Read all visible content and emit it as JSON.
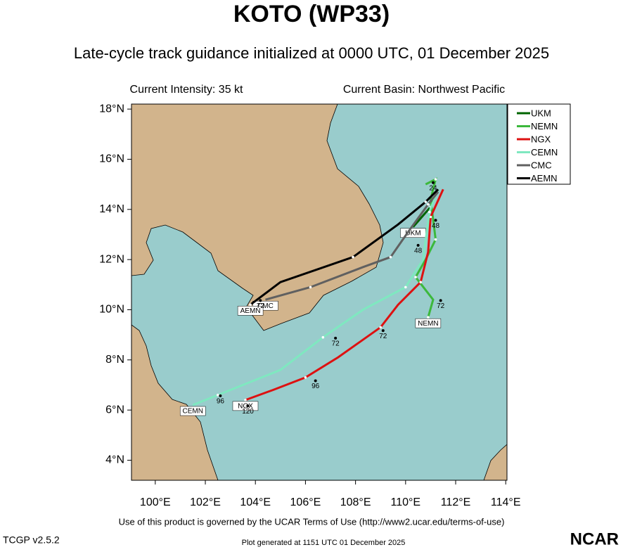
{
  "chart_data": {
    "type": "map",
    "title": "KOTO (WP33)",
    "subtitle": "Late-cycle track guidance initialized at 0000 UTC, 01 December 2025",
    "info_left": "Current Intensity: 35 kt",
    "info_right": "Current Basin: Northwest Pacific",
    "xlim": [
      99.05,
      114.05
    ],
    "ylim": [
      3.2,
      18.2
    ],
    "xticks": [
      {
        "value": 100,
        "label": "100°E"
      },
      {
        "value": 102,
        "label": "102°E"
      },
      {
        "value": 104,
        "label": "104°E"
      },
      {
        "value": 106,
        "label": "106°E"
      },
      {
        "value": 108,
        "label": "108°E"
      },
      {
        "value": 110,
        "label": "110°E"
      },
      {
        "value": 112,
        "label": "112°E"
      },
      {
        "value": 114,
        "label": "114°E"
      }
    ],
    "yticks": [
      {
        "value": 4,
        "label": "4°N"
      },
      {
        "value": 6,
        "label": "6°N"
      },
      {
        "value": 8,
        "label": "8°N"
      },
      {
        "value": 10,
        "label": "10°N"
      },
      {
        "value": 12,
        "label": "12°N"
      },
      {
        "value": 14,
        "label": "14°N"
      },
      {
        "value": 16,
        "label": "16°N"
      },
      {
        "value": 18,
        "label": "18°N"
      }
    ],
    "land_color": "#d2b48c",
    "sea_color": "#99cccc",
    "series": [
      {
        "name": "UKM",
        "color": "#006400",
        "lon": [
          111.3,
          111.0,
          110.3
        ],
        "lat": [
          14.8,
          14.1,
          13.3
        ]
      },
      {
        "name": "NEMN",
        "color": "#3cb83c",
        "lon": [
          110.8,
          111.2,
          111.0,
          111.2,
          110.8,
          110.4,
          111.1,
          110.9
        ],
        "lat": [
          15.0,
          15.2,
          14.4,
          12.8,
          12.0,
          11.3,
          10.4,
          9.7
        ]
      },
      {
        "name": "NGX",
        "color": "#dd1111",
        "lon": [
          111.5,
          111.0,
          110.9,
          110.6,
          109.7,
          109.0,
          107.3,
          106.0,
          104.7,
          103.6
        ],
        "lat": [
          14.8,
          13.7,
          12.3,
          11.1,
          10.2,
          9.3,
          8.1,
          7.3,
          6.8,
          6.4
        ]
      },
      {
        "name": "CEMN",
        "color": "#7fe8c0",
        "lon": [
          111.3,
          110.95,
          110.7,
          110.0,
          108.3,
          106.7,
          105.0,
          102.5,
          101.5
        ],
        "lat": [
          14.8,
          13.9,
          12.0,
          10.9,
          10.0,
          8.9,
          7.6,
          6.6,
          6.2
        ]
      },
      {
        "name": "CMC",
        "color": "#606060",
        "lon": [
          111.3,
          110.9,
          110.1,
          109.4,
          108.3,
          106.2,
          104.4
        ],
        "lat": [
          14.7,
          14.2,
          13.1,
          12.1,
          11.7,
          10.9,
          10.4
        ]
      },
      {
        "name": "AEMN",
        "color": "#000000",
        "lon": [
          111.3,
          110.8,
          109.7,
          107.9,
          105.0,
          103.8
        ],
        "lat": [
          14.8,
          14.3,
          13.4,
          12.1,
          11.1,
          10.2
        ]
      }
    ],
    "hour_labels": [
      {
        "hour": 24,
        "lon": 111.1,
        "lat": 14.9
      },
      {
        "hour": 48,
        "lon": 110.5,
        "lat": 12.4
      },
      {
        "hour": 48,
        "lon": 111.2,
        "lat": 13.4
      },
      {
        "hour": 72,
        "lon": 104.2,
        "lat": 10.2
      },
      {
        "hour": 72,
        "lon": 107.2,
        "lat": 8.7
      },
      {
        "hour": 72,
        "lon": 109.1,
        "lat": 9.0
      },
      {
        "hour": 72,
        "lon": 111.4,
        "lat": 10.2
      },
      {
        "hour": 96,
        "lon": 106.4,
        "lat": 7.0
      },
      {
        "hour": 96,
        "lon": 102.6,
        "lat": 6.4
      },
      {
        "hour": 120,
        "lon": 103.7,
        "lat": 6.0
      }
    ]
  },
  "footer": {
    "terms": "Use of this product is governed by the UCAR Terms of Use (http://www2.ucar.edu/terms-of-use)",
    "version": "TCGP v2.5.2",
    "generated": "Plot generated at 1151 UTC   01 December 2025",
    "logo": "NCAR"
  }
}
